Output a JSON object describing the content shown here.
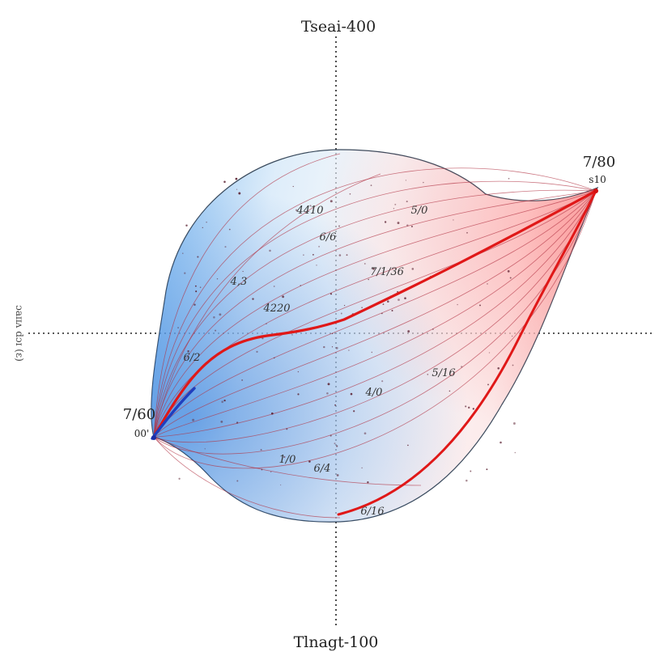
{
  "diagram": {
    "top_label": "Tseai-400",
    "bottom_label": "Tlnagt-100",
    "left_axis_label": "ɔaɪɪʌ dɔɪ (ɛ)",
    "left_endpoint": {
      "value": "7/60",
      "sub": "00'"
    },
    "right_endpoint": {
      "value": "7/80",
      "sub": "s10"
    },
    "annotations": [
      "4410",
      "5/0",
      "4,3",
      "7/1/36",
      "6/6",
      "4220",
      "6/2",
      "4/0",
      "5/16",
      "6/4",
      "1/0",
      "6/16"
    ],
    "colors": {
      "cold": "#2f7ce0",
      "hot": "#e02020",
      "thin_line": "#b03040",
      "dot": "#5a2030"
    }
  }
}
